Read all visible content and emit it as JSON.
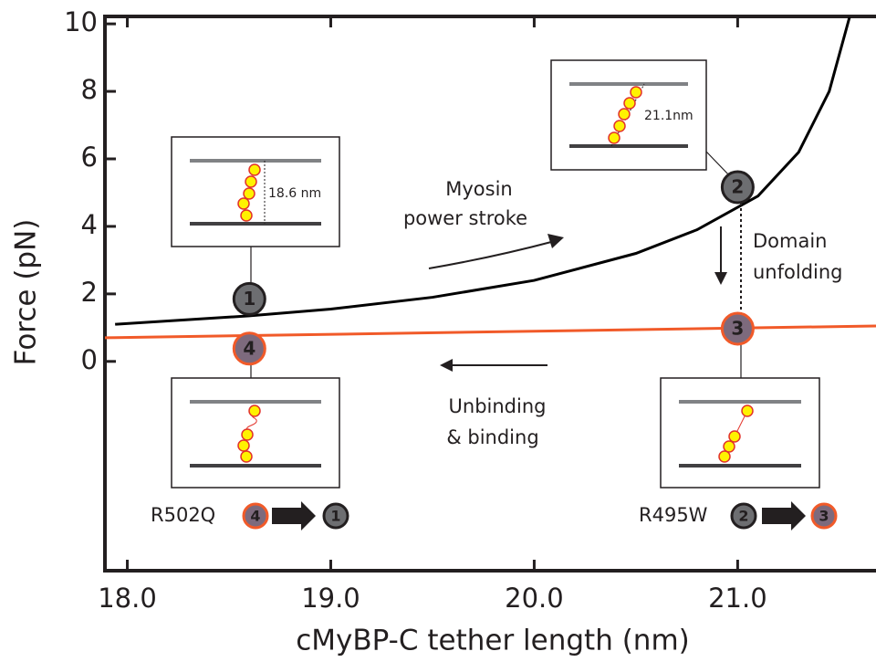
{
  "chart_data": {
    "type": "line",
    "xlabel": "cMyBP-C tether length (nm)",
    "ylabel": "Force (pN)",
    "xlim": [
      17.89,
      21.68
    ],
    "ylim": [
      -6.2,
      10.22
    ],
    "xticks": [
      {
        "value": 18,
        "label": "18.0"
      },
      {
        "value": 19,
        "label": "19.0"
      },
      {
        "value": 20,
        "label": "20.0"
      },
      {
        "value": 21,
        "label": "21.0"
      }
    ],
    "yticks": [
      0,
      2,
      4,
      6,
      8,
      10
    ],
    "series": [
      {
        "color": "#000000",
        "width": 3,
        "x": [
          17.94,
          18.6,
          19.0,
          19.5,
          20.0,
          20.5,
          20.8,
          21.1,
          21.3,
          21.45,
          21.55
        ],
        "values": [
          1.1,
          1.35,
          1.55,
          1.9,
          2.4,
          3.2,
          3.9,
          4.9,
          6.2,
          8.0,
          10.2
        ]
      },
      {
        "color": "#f15a29",
        "width": 3,
        "x": [
          17.89,
          21.68
        ],
        "values": [
          0.7,
          1.05
        ]
      }
    ],
    "states": [
      {
        "label": "1",
        "x": 18.6,
        "y": 1.85,
        "fill": "#6d6e71",
        "stroke": "#231f20"
      },
      {
        "label": "2",
        "x": 21.0,
        "y": 5.16,
        "fill": "#6d6e71",
        "stroke": "#231f20"
      },
      {
        "label": "3",
        "x": 21.0,
        "y": 0.97,
        "fill": "#7d6a7d",
        "stroke": "#f15a29"
      },
      {
        "label": "4",
        "x": 18.6,
        "y": 0.38,
        "fill": "#7d6a7d",
        "stroke": "#f15a29"
      }
    ],
    "annotations": {
      "power_stroke": [
        "Myosin",
        "power stroke"
      ],
      "unfolding": [
        "Domain",
        "unfolding"
      ],
      "binding": [
        "Unbinding",
        "& binding"
      ],
      "inset_1_length": "18.6 nm",
      "inset_2_length": "21.1nm",
      "mutant_1": "R502Q",
      "mutant_2": "R495W"
    }
  }
}
